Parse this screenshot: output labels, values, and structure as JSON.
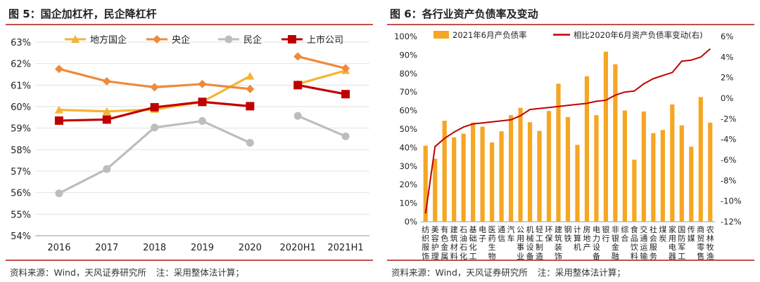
{
  "figures": [
    {
      "title": "图 5：国企加杠杆，民企降杠杆",
      "source": "资料来源：Wind，天风证券研究所",
      "note": "注：采用整体法计算；"
    },
    {
      "title": "图 6：各行业资产负债率及变动",
      "source": "资料来源：Wind，天风证券研究所",
      "note": "注：采用整体法计算；"
    }
  ],
  "chart_data": [
    {
      "type": "line",
      "categories": [
        "2016",
        "2017",
        "2018",
        "2019",
        "2020",
        "2020H1",
        "2021H1"
      ],
      "ylim": [
        54,
        63
      ],
      "yunit": "%",
      "grid": true,
      "legend_position": "top",
      "segments": [
        [
          0,
          4
        ],
        [
          5,
          6
        ]
      ],
      "series": [
        {
          "name": "地方国企",
          "color": "#f5b335",
          "marker": "triangle",
          "values": [
            59.85,
            59.78,
            59.87,
            60.22,
            61.42,
            61.05,
            61.68
          ]
        },
        {
          "name": "央企",
          "color": "#ee8a3a",
          "marker": "diamond",
          "values": [
            61.75,
            61.18,
            60.9,
            61.05,
            60.82,
            62.33,
            61.78
          ]
        },
        {
          "name": "民企",
          "color": "#bdbdbd",
          "marker": "circle",
          "values": [
            55.97,
            57.1,
            59.03,
            59.33,
            58.32,
            59.57,
            58.62
          ]
        },
        {
          "name": "上市公司",
          "color": "#c00000",
          "marker": "square",
          "values": [
            59.35,
            59.4,
            59.97,
            60.22,
            60.02,
            61.0,
            60.58
          ]
        }
      ]
    },
    {
      "type": "bar",
      "categories": [
        "纺织服饰",
        "美容护理",
        "有色金属",
        "建筑材料",
        "石油石化",
        "基础化工",
        "电子",
        "医药生物",
        "通信",
        "汽车",
        "公用事业",
        "机械设备",
        "轻工制造",
        "环保",
        "建筑装饰",
        "钢铁",
        "计算机",
        "房地产",
        "电力设备",
        "银行",
        "非银金融",
        "综合",
        "食品饮料",
        "交通运输",
        "社会服务",
        "煤炭",
        "家用电器",
        "国防军工",
        "传媒",
        "商贸零售",
        "农林牧渔"
      ],
      "ylim_left": [
        0,
        100
      ],
      "ylim_right": [
        -12,
        6
      ],
      "yunit": "%",
      "legend_position": "top",
      "series": [
        {
          "name": "2021年6月产负债率",
          "axis": "left",
          "type": "bar",
          "color": "#f5a623",
          "values": [
            41,
            34,
            54.5,
            45.5,
            47.5,
            53.5,
            51.3,
            42.8,
            48.8,
            57.5,
            61.5,
            53.7,
            49,
            59.8,
            74.5,
            56.5,
            41.5,
            78.5,
            57.5,
            91.8,
            85,
            60,
            33.5,
            59.5,
            47.8,
            49.5,
            63.3,
            52,
            40.5,
            67.3,
            53.5
          ]
        },
        {
          "name": "相比2020年6月资产负债率变动(右)",
          "axis": "right",
          "type": "line",
          "color": "#c00000",
          "values": [
            -11.2,
            -4.7,
            -3.9,
            -3.3,
            -2.8,
            -2.5,
            -2.4,
            -2.3,
            -2.2,
            -2.1,
            -1.7,
            -1.1,
            -1.0,
            -0.9,
            -0.8,
            -0.7,
            -0.6,
            -0.5,
            -0.3,
            -0.2,
            0.3,
            0.6,
            0.7,
            1.4,
            1.9,
            2.2,
            2.5,
            3.6,
            3.7,
            4.0,
            4.8
          ]
        }
      ]
    }
  ]
}
